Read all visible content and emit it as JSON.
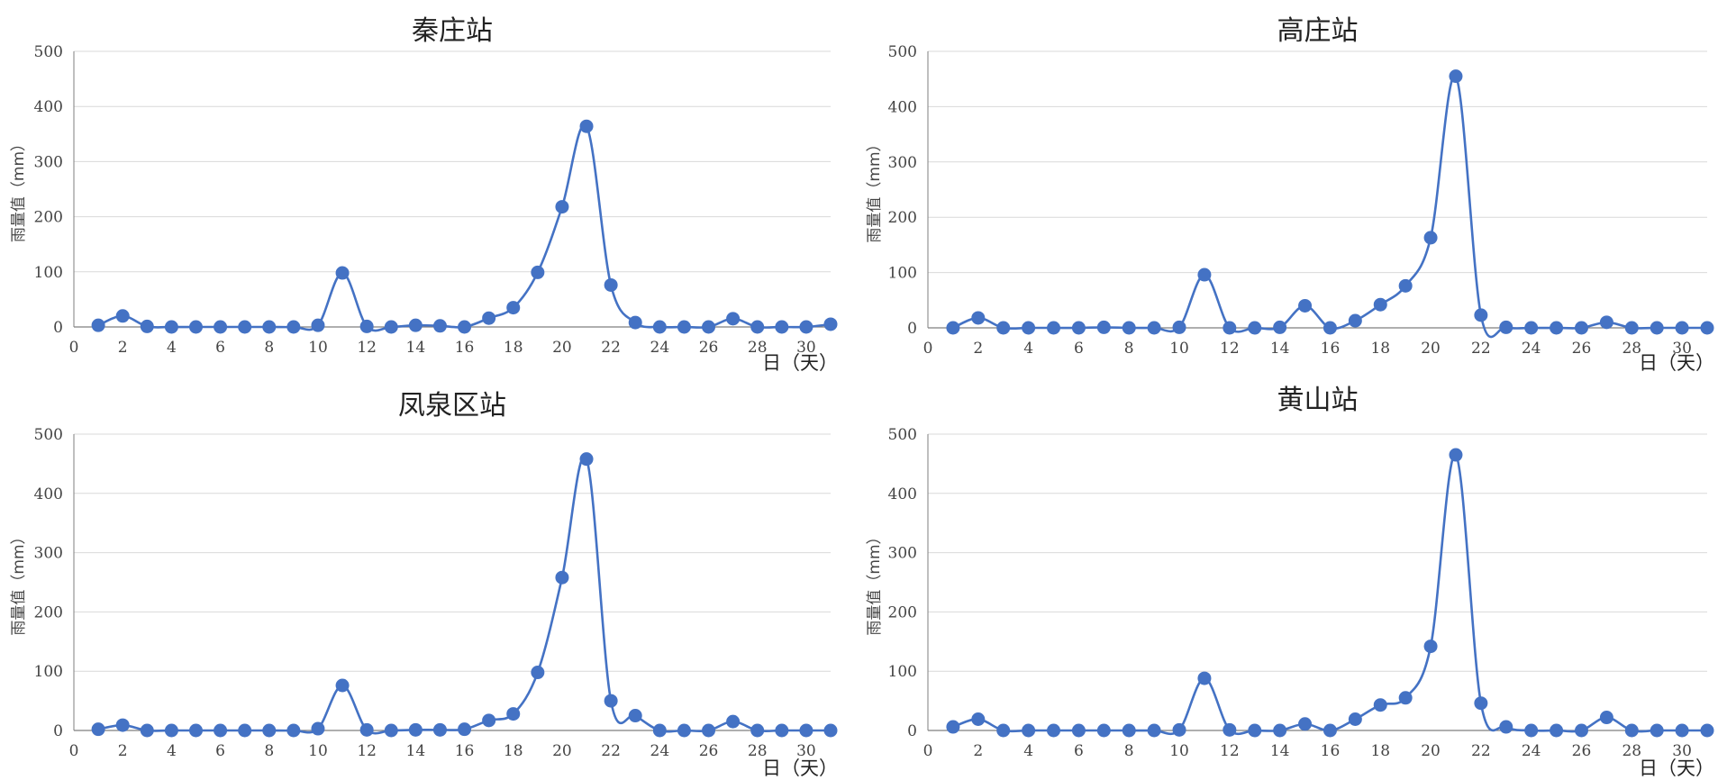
{
  "theme": {
    "series_color": "#4472C4"
  },
  "chart_data": [
    {
      "type": "line",
      "title": "秦庄站",
      "ylabel": "雨量值（mm）",
      "xlabel": "日（天）",
      "ylim": [
        0,
        500
      ],
      "yticks": [
        0,
        100,
        200,
        300,
        400,
        500
      ],
      "xlim": [
        0,
        31
      ],
      "xticks": [
        0,
        2,
        4,
        6,
        8,
        10,
        12,
        14,
        16,
        18,
        20,
        22,
        24,
        26,
        28,
        30
      ],
      "grid": true,
      "smooth": true,
      "series": [
        {
          "x": [
            1,
            2,
            3,
            4,
            5,
            6,
            7,
            8,
            9,
            10,
            11,
            12,
            13,
            14,
            15,
            16,
            17,
            18,
            19,
            20,
            21,
            22,
            23,
            24,
            25,
            26,
            27,
            28,
            29,
            30,
            31
          ],
          "y": [
            3,
            20,
            1,
            0,
            0,
            0,
            0,
            0,
            0,
            3,
            98,
            1,
            0,
            3,
            2,
            0,
            16,
            35,
            99,
            218,
            364,
            76,
            8,
            0,
            0,
            0,
            15,
            0,
            0,
            0,
            5
          ]
        }
      ]
    },
    {
      "type": "line",
      "title": "高庄站",
      "ylabel": "雨量值（mm）",
      "xlabel": "日（天）",
      "ylim": [
        0,
        500
      ],
      "yticks": [
        0,
        100,
        200,
        300,
        400,
        500
      ],
      "xlim": [
        0,
        31
      ],
      "xticks": [
        0,
        2,
        4,
        6,
        8,
        10,
        12,
        14,
        16,
        18,
        20,
        22,
        24,
        26,
        28,
        30
      ],
      "grid": true,
      "smooth": true,
      "series": [
        {
          "x": [
            1,
            2,
            3,
            4,
            5,
            6,
            7,
            8,
            9,
            10,
            11,
            12,
            13,
            14,
            15,
            16,
            17,
            18,
            19,
            20,
            21,
            22,
            23,
            24,
            25,
            26,
            27,
            28,
            29,
            30,
            31
          ],
          "y": [
            0,
            18,
            0,
            0,
            0,
            0,
            1,
            0,
            0,
            1,
            96,
            0,
            0,
            1,
            40,
            0,
            13,
            42,
            76,
            163,
            455,
            23,
            1,
            0,
            0,
            0,
            10,
            0,
            0,
            0,
            0
          ]
        }
      ]
    },
    {
      "type": "line",
      "title": "凤泉区站",
      "ylabel": "雨量值（mm）",
      "xlabel": "日（天）",
      "ylim": [
        0,
        500
      ],
      "yticks": [
        0,
        100,
        200,
        300,
        400,
        500
      ],
      "xlim": [
        0,
        31
      ],
      "xticks": [
        0,
        2,
        4,
        6,
        8,
        10,
        12,
        14,
        16,
        18,
        20,
        22,
        24,
        26,
        28,
        30
      ],
      "grid": true,
      "smooth": true,
      "series": [
        {
          "x": [
            1,
            2,
            3,
            4,
            5,
            6,
            7,
            8,
            9,
            10,
            11,
            12,
            13,
            14,
            15,
            16,
            17,
            18,
            19,
            20,
            21,
            22,
            23,
            24,
            25,
            26,
            27,
            28,
            29,
            30,
            31
          ],
          "y": [
            2,
            9,
            0,
            0,
            0,
            0,
            0,
            0,
            0,
            3,
            76,
            1,
            0,
            1,
            1,
            2,
            17,
            28,
            98,
            258,
            458,
            50,
            25,
            0,
            0,
            0,
            15,
            0,
            0,
            0,
            0
          ]
        }
      ]
    },
    {
      "type": "line",
      "title": "黄山站",
      "ylabel": "雨量值（mm）",
      "xlabel": "日（天）",
      "ylim": [
        0,
        500
      ],
      "yticks": [
        0,
        100,
        200,
        300,
        400,
        500
      ],
      "xlim": [
        0,
        31
      ],
      "xticks": [
        0,
        2,
        4,
        6,
        8,
        10,
        12,
        14,
        16,
        18,
        20,
        22,
        24,
        26,
        28,
        30
      ],
      "grid": true,
      "smooth": true,
      "series": [
        {
          "x": [
            1,
            2,
            3,
            4,
            5,
            6,
            7,
            8,
            9,
            10,
            11,
            12,
            13,
            14,
            15,
            16,
            17,
            18,
            19,
            20,
            21,
            22,
            23,
            24,
            25,
            26,
            27,
            28,
            29,
            30,
            31
          ],
          "y": [
            6,
            19,
            0,
            0,
            0,
            0,
            0,
            0,
            0,
            1,
            88,
            1,
            0,
            0,
            11,
            0,
            19,
            43,
            55,
            142,
            465,
            46,
            6,
            0,
            0,
            0,
            22,
            0,
            0,
            0,
            0
          ]
        }
      ]
    }
  ]
}
